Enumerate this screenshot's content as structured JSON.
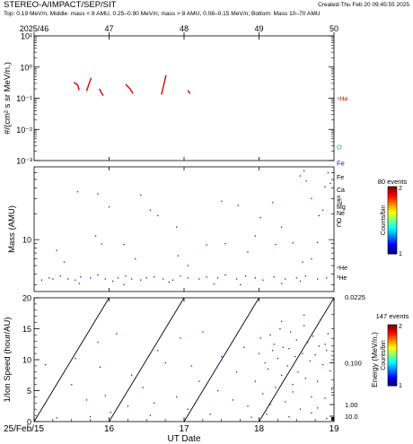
{
  "header": {
    "title": "STEREO-A/IMPACT/SEP/SIT",
    "created": "Created-Thu Feb 20 09:45:55 2025",
    "subtitle": "Top: 0.19 MeV/n; Middle: mass < 8 AMU, 0.25–0.90 MeV/n; mass > 8 AMU, 0.08–0.15 MeV/n; Bottom: Mass 10–70 AMU"
  },
  "top_axis": {
    "labels": [
      "2025/46",
      "47",
      "48",
      "49",
      "50"
    ]
  },
  "chart_data": [
    {
      "type": "line",
      "panel": "top",
      "ylabel": "#/(cm² s sr MeV/n.)",
      "yscale": "log",
      "ylim": [
        0.001,
        10
      ],
      "ytick_labels": [
        "10¹",
        "10⁰",
        "10⁻¹",
        "10⁻²",
        "10⁻³"
      ],
      "xlim": [
        15,
        19
      ],
      "series": [
        {
          "name": "⁴He",
          "color": "#dd0000",
          "segments": [
            [
              [
                15.53,
                0.32
              ],
              [
                15.58,
                0.27
              ],
              [
                15.6,
                0.18
              ]
            ],
            [
              [
                15.7,
                0.17
              ],
              [
                15.73,
                0.28
              ],
              [
                15.76,
                0.45
              ]
            ],
            [
              [
                15.87,
                0.2
              ],
              [
                15.92,
                0.12
              ]
            ],
            [
              [
                16.22,
                0.28
              ],
              [
                16.28,
                0.2
              ],
              [
                16.32,
                0.14
              ]
            ],
            [
              [
                16.7,
                0.13
              ],
              [
                16.73,
                0.28
              ],
              [
                16.76,
                0.55
              ]
            ],
            [
              [
                17.05,
                0.18
              ],
              [
                17.08,
                0.14
              ]
            ]
          ]
        },
        {
          "name": "O",
          "color": "#22bb22",
          "segments": []
        },
        {
          "name": "Fe",
          "color": "#0000ee",
          "segments": []
        }
      ]
    },
    {
      "type": "scatter",
      "panel": "middle",
      "ylabel": "Mass (AMU)",
      "yscale": "log",
      "ylim": [
        2.5,
        70
      ],
      "ytick_labels": [
        "10"
      ],
      "element_labels": [
        {
          "label": "Fe",
          "mass": 56
        },
        {
          "label": "Ca",
          "mass": 40
        },
        {
          "label": "Si",
          "mass": 28
        },
        {
          "label": "S",
          "mass": 32
        },
        {
          "label": "Mg",
          "mass": 24
        },
        {
          "label": "Ne",
          "mass": 20
        },
        {
          "label": "O",
          "mass": 16
        },
        {
          "label": "C",
          "mass": 12
        },
        {
          "label": "⁴He",
          "mass": 4
        },
        {
          "label": "³He",
          "mass": 3
        }
      ],
      "colorbar": {
        "events_label": "80 events",
        "label": "Counts/bin",
        "min": 1,
        "max": 2,
        "tick_labels": [
          "2",
          "1"
        ]
      },
      "points": [
        [
          15.2,
          3.6
        ],
        [
          15.25,
          3.5
        ],
        [
          15.35,
          3.8
        ],
        [
          15.45,
          3.5
        ],
        [
          15.55,
          3.4
        ],
        [
          15.62,
          3.7
        ],
        [
          15.75,
          3.6
        ],
        [
          15.85,
          3.9
        ],
        [
          15.95,
          3.5
        ],
        [
          16.05,
          3.3
        ],
        [
          16.12,
          3.6
        ],
        [
          16.22,
          3.8
        ],
        [
          16.3,
          3.5
        ],
        [
          16.42,
          3.4
        ],
        [
          16.5,
          3.6
        ],
        [
          16.6,
          3.7
        ],
        [
          16.72,
          3.5
        ],
        [
          16.85,
          3.4
        ],
        [
          16.95,
          3.8
        ],
        [
          17.05,
          3.6
        ],
        [
          17.2,
          3.5
        ],
        [
          17.3,
          3.7
        ],
        [
          17.45,
          3.6
        ],
        [
          17.55,
          3.9
        ],
        [
          17.7,
          3.5
        ],
        [
          17.82,
          3.8
        ],
        [
          17.95,
          3.6
        ],
        [
          18.05,
          3.4
        ],
        [
          18.2,
          3.7
        ],
        [
          18.35,
          3.5
        ],
        [
          18.5,
          3.6
        ],
        [
          18.62,
          3.8
        ],
        [
          18.78,
          3.5
        ],
        [
          18.9,
          3.6
        ],
        [
          15.6,
          3.1
        ],
        [
          16.2,
          3.0
        ],
        [
          17.4,
          3.05
        ],
        [
          17.75,
          3.0
        ],
        [
          18.3,
          3.1
        ],
        [
          16.8,
          3.2
        ],
        [
          15.1,
          3.4
        ],
        [
          18.55,
          3.3
        ],
        [
          15.58,
          36
        ],
        [
          15.85,
          34
        ],
        [
          16.42,
          33
        ],
        [
          16.65,
          19
        ],
        [
          16.9,
          14
        ],
        [
          15.82,
          11
        ],
        [
          16.55,
          22
        ],
        [
          17.72,
          25
        ],
        [
          18.02,
          18
        ],
        [
          18.55,
          55
        ],
        [
          18.63,
          48
        ],
        [
          18.92,
          60
        ],
        [
          18.95,
          45
        ],
        [
          18.7,
          30
        ],
        [
          18.85,
          22
        ],
        [
          18.18,
          27
        ],
        [
          18.45,
          9.2
        ],
        [
          17.55,
          9.0
        ],
        [
          16.2,
          8.8
        ],
        [
          15.9,
          8.9
        ],
        [
          17.3,
          8.7
        ],
        [
          18.22,
          8.8
        ],
        [
          18.78,
          9.3
        ],
        [
          16.92,
          6.5
        ],
        [
          17.05,
          5.0
        ],
        [
          16.35,
          6.0
        ],
        [
          17.85,
          7.2
        ],
        [
          18.7,
          6.0
        ],
        [
          15.4,
          5.5
        ],
        [
          18.88,
          41
        ],
        [
          18.6,
          63
        ],
        [
          17.5,
          28
        ],
        [
          16.0,
          24
        ],
        [
          18.8,
          19
        ],
        [
          18.3,
          14
        ],
        [
          17.95,
          11
        ],
        [
          15.3,
          7.5
        ],
        [
          18.58,
          5.5
        ]
      ]
    },
    {
      "type": "scatter",
      "panel": "bottom",
      "ylabel": "1/Ion Speed (hour/AU)",
      "xlabel": "UT Date",
      "xlim": [
        15,
        19
      ],
      "ylim": [
        0,
        20
      ],
      "xtick_labels": [
        "25/Feb/15",
        "16",
        "17",
        "18",
        "19"
      ],
      "ytick_labels": [
        "0",
        "5",
        "10",
        "15",
        "20"
      ],
      "right_axis": {
        "label": "Energy (MeV/n.)",
        "tick_labels": [
          "0.0225",
          "0.100",
          "1.00",
          "10.0"
        ],
        "tick_values": [
          0.0225,
          0.1,
          1.0,
          10.0
        ]
      },
      "colorbar": {
        "events_label": "147 events",
        "label": "Counts/bin",
        "min": 1,
        "max": 2,
        "tick_labels": [
          "2",
          "1"
        ]
      },
      "velocity_dispersion_lines": [
        {
          "x_start": 15.0,
          "x_end": 16.0
        },
        {
          "x_start": 16.0,
          "x_end": 17.0
        },
        {
          "x_start": 17.0,
          "x_end": 18.0
        },
        {
          "x_start": 18.0,
          "x_end": 19.0
        }
      ],
      "points": [
        [
          15.15,
          9.2
        ],
        [
          15.3,
          0.6
        ],
        [
          15.5,
          6.0
        ],
        [
          15.55,
          10.2
        ],
        [
          15.7,
          3.5
        ],
        [
          15.75,
          0.8
        ],
        [
          15.85,
          12.8
        ],
        [
          15.88,
          8.8
        ],
        [
          15.95,
          4.2
        ],
        [
          16.02,
          1.5
        ],
        [
          16.1,
          14.2
        ],
        [
          16.25,
          2.5
        ],
        [
          16.3,
          7.5
        ],
        [
          16.45,
          5.5
        ],
        [
          16.55,
          1.0
        ],
        [
          16.6,
          3.0
        ],
        [
          16.65,
          11.5
        ],
        [
          16.75,
          9.5
        ],
        [
          16.9,
          4.0
        ],
        [
          16.95,
          13.5
        ],
        [
          17.05,
          2.0
        ],
        [
          17.1,
          9.0
        ],
        [
          17.2,
          6.5
        ],
        [
          17.25,
          14.5
        ],
        [
          17.35,
          1.2
        ],
        [
          17.45,
          5.0
        ],
        [
          17.5,
          10.5
        ],
        [
          17.65,
          3.5
        ],
        [
          17.7,
          8.0
        ],
        [
          17.8,
          12.0
        ],
        [
          17.85,
          2.5
        ],
        [
          17.9,
          0.7
        ],
        [
          17.95,
          6.5
        ],
        [
          18.0,
          11.0
        ],
        [
          18.02,
          13.5
        ],
        [
          18.05,
          4.5
        ],
        [
          18.08,
          9.5
        ],
        [
          18.12,
          8.5
        ],
        [
          18.15,
          14.0
        ],
        [
          18.18,
          11.5
        ],
        [
          18.2,
          12.5
        ],
        [
          18.22,
          5.5
        ],
        [
          18.25,
          10.2
        ],
        [
          18.28,
          15.0
        ],
        [
          18.3,
          7.5
        ],
        [
          18.32,
          12.0
        ],
        [
          18.35,
          3.2
        ],
        [
          18.38,
          9.0
        ],
        [
          18.4,
          11.8
        ],
        [
          18.42,
          14.5
        ],
        [
          18.45,
          6.0
        ],
        [
          18.48,
          10.5
        ],
        [
          18.5,
          13.2
        ],
        [
          18.52,
          8.0
        ],
        [
          18.55,
          2.0
        ],
        [
          18.58,
          11.0
        ],
        [
          18.6,
          15.5
        ],
        [
          18.62,
          7.0
        ],
        [
          18.65,
          12.8
        ],
        [
          18.68,
          9.8
        ],
        [
          18.7,
          4.0
        ],
        [
          18.72,
          13.8
        ],
        [
          18.75,
          10.8
        ],
        [
          18.78,
          6.5
        ],
        [
          18.8,
          12.2
        ],
        [
          18.82,
          16.5
        ],
        [
          18.85,
          9.2
        ],
        [
          18.88,
          3.8
        ],
        [
          18.9,
          11.5
        ],
        [
          18.92,
          14.2
        ],
        [
          18.95,
          8.2
        ],
        [
          18.97,
          5.2
        ],
        [
          18.1,
          1.2
        ],
        [
          18.4,
          0.8
        ],
        [
          18.7,
          1.4
        ],
        [
          18.9,
          0.5
        ],
        [
          18.6,
          17.2
        ],
        [
          18.3,
          16.2
        ],
        [
          18.15,
          2.8
        ],
        [
          18.45,
          4.8
        ],
        [
          18.78,
          2.2
        ],
        [
          18.88,
          12.5
        ]
      ]
    }
  ]
}
